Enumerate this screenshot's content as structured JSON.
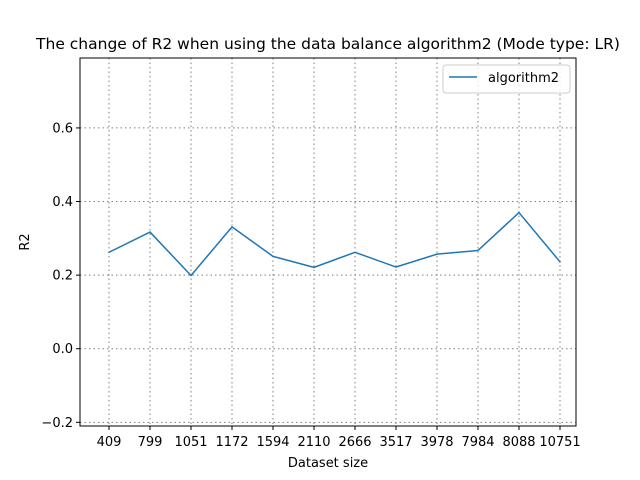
{
  "chart_data": {
    "type": "line",
    "title": "The change of R2 when using the data balance algorithm2 (Mode type: LR)",
    "xlabel": "Dataset size",
    "ylabel": "R2",
    "categories": [
      "409",
      "799",
      "1051",
      "1172",
      "1594",
      "2110",
      "2666",
      "3517",
      "3978",
      "7984",
      "8088",
      "10751"
    ],
    "series": [
      {
        "name": "algorithm2",
        "values": [
          0.262,
          0.317,
          0.199,
          0.331,
          0.251,
          0.221,
          0.262,
          0.222,
          0.257,
          0.267,
          0.37,
          0.236
        ],
        "color": "#1f77b4"
      }
    ],
    "ylim": [
      -0.21,
      0.79
    ],
    "yticks": [
      -0.2,
      0.0,
      0.2,
      0.4,
      0.6
    ],
    "ytick_labels": [
      "−0.2",
      "0.0",
      "0.2",
      "0.4",
      "0.6"
    ],
    "grid": true,
    "grid_style": "dotted",
    "legend_position": "top-right"
  }
}
